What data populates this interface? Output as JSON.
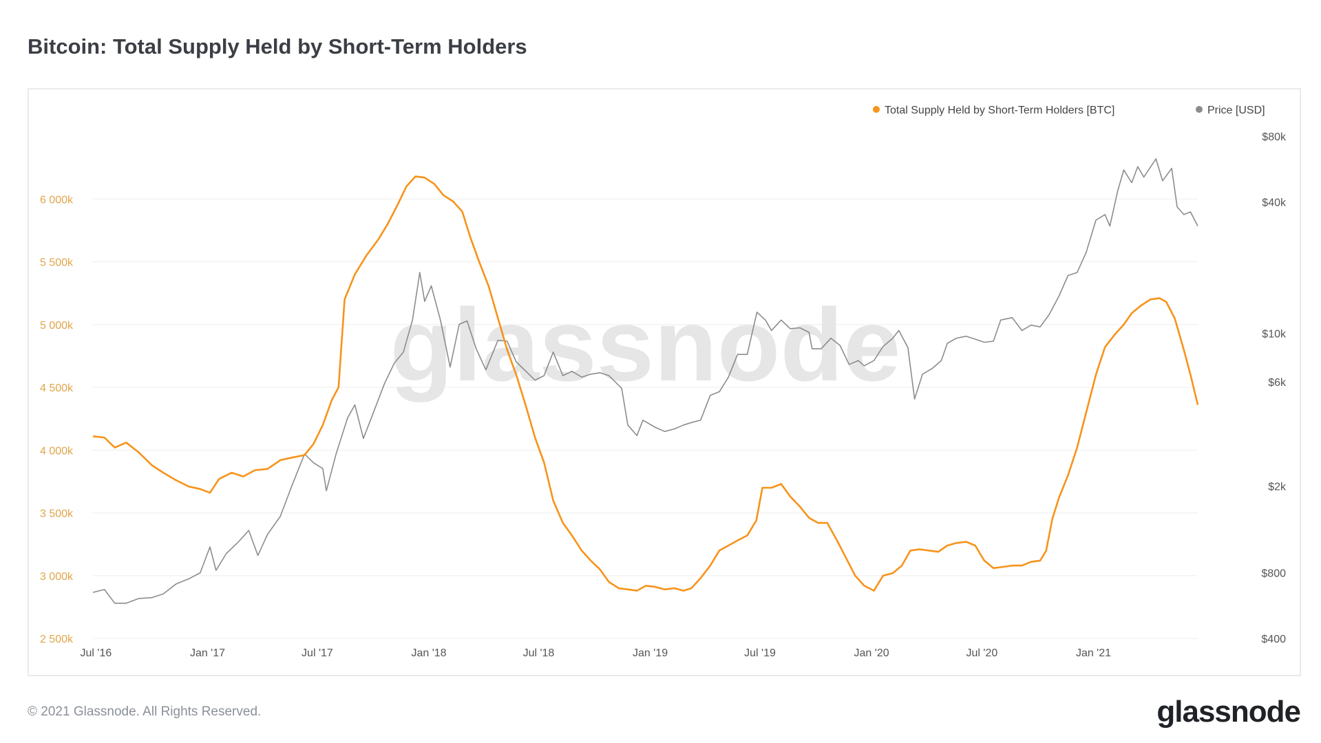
{
  "page": {
    "title": "Bitcoin: Total Supply Held by Short-Term Holders",
    "footer_copyright": "© 2021 Glassnode. All Rights Reserved.",
    "footer_logo": "glassnode",
    "watermark": "glassnode"
  },
  "colors": {
    "supply": "#f7931a",
    "price": "#8c8c8c",
    "left_axis_text": "#e0a54a",
    "right_axis_text": "#555555",
    "grid": "#eeeeee"
  },
  "chart_data": {
    "type": "line",
    "title": "Bitcoin: Total Supply Held by Short-Term Holders",
    "legend_position": "top-right",
    "x_ticks": [
      "Jul '16",
      "Jan '17",
      "Jul '17",
      "Jan '18",
      "Jul '18",
      "Jan '19",
      "Jul '19",
      "Jan '20",
      "Jul '20",
      "Jan '21"
    ],
    "x_range": [
      "2016-06-26",
      "2021-06-22"
    ],
    "y_left": {
      "range": [
        2500,
        6500
      ],
      "ticks": [
        2500,
        3000,
        3500,
        4000,
        4500,
        5000,
        5500,
        6000
      ],
      "tick_labels": [
        "2 500k",
        "3 000k",
        "3 500k",
        "4 000k",
        "4 500k",
        "5 000k",
        "5 500k",
        "6 000k"
      ]
    },
    "y_right": {
      "scale": "log",
      "ticks": [
        400,
        800,
        2000,
        6000,
        10000,
        40000,
        80000
      ],
      "tick_labels": [
        "$400",
        "$800",
        "$2k",
        "$6k",
        "$10k",
        "$40k",
        "$80k"
      ]
    },
    "series": [
      {
        "name": "Total Supply Held by Short-Term Holders [BTC]",
        "axis": "left",
        "points": [
          [
            "2016-06-26",
            4110
          ],
          [
            "2016-07-15",
            4100
          ],
          [
            "2016-08-01",
            4020
          ],
          [
            "2016-08-20",
            4060
          ],
          [
            "2016-09-10",
            3980
          ],
          [
            "2016-10-01",
            3880
          ],
          [
            "2016-10-20",
            3820
          ],
          [
            "2016-11-10",
            3760
          ],
          [
            "2016-12-01",
            3710
          ],
          [
            "2016-12-20",
            3690
          ],
          [
            "2017-01-05",
            3660
          ],
          [
            "2017-01-20",
            3770
          ],
          [
            "2017-02-10",
            3820
          ],
          [
            "2017-03-01",
            3790
          ],
          [
            "2017-03-20",
            3840
          ],
          [
            "2017-04-10",
            3850
          ],
          [
            "2017-05-01",
            3920
          ],
          [
            "2017-05-20",
            3940
          ],
          [
            "2017-06-10",
            3960
          ],
          [
            "2017-06-25",
            4050
          ],
          [
            "2017-07-10",
            4200
          ],
          [
            "2017-07-25",
            4400
          ],
          [
            "2017-08-05",
            4500
          ],
          [
            "2017-08-15",
            5200
          ],
          [
            "2017-09-01",
            5400
          ],
          [
            "2017-09-20",
            5550
          ],
          [
            "2017-10-10",
            5680
          ],
          [
            "2017-10-25",
            5800
          ],
          [
            "2017-11-10",
            5950
          ],
          [
            "2017-11-25",
            6100
          ],
          [
            "2017-12-10",
            6180
          ],
          [
            "2017-12-25",
            6170
          ],
          [
            "2018-01-10",
            6120
          ],
          [
            "2018-01-25",
            6030
          ],
          [
            "2018-02-10",
            5980
          ],
          [
            "2018-02-25",
            5900
          ],
          [
            "2018-03-10",
            5700
          ],
          [
            "2018-03-25",
            5500
          ],
          [
            "2018-04-10",
            5300
          ],
          [
            "2018-04-25",
            5050
          ],
          [
            "2018-05-10",
            4800
          ],
          [
            "2018-05-25",
            4600
          ],
          [
            "2018-06-10",
            4350
          ],
          [
            "2018-06-25",
            4100
          ],
          [
            "2018-07-10",
            3900
          ],
          [
            "2018-07-25",
            3600
          ],
          [
            "2018-08-10",
            3420
          ],
          [
            "2018-08-25",
            3320
          ],
          [
            "2018-09-10",
            3200
          ],
          [
            "2018-09-25",
            3120
          ],
          [
            "2018-10-10",
            3050
          ],
          [
            "2018-10-25",
            2950
          ],
          [
            "2018-11-10",
            2900
          ],
          [
            "2018-11-25",
            2890
          ],
          [
            "2018-12-10",
            2880
          ],
          [
            "2018-12-25",
            2920
          ],
          [
            "2019-01-10",
            2910
          ],
          [
            "2019-01-25",
            2890
          ],
          [
            "2019-02-10",
            2900
          ],
          [
            "2019-02-25",
            2880
          ],
          [
            "2019-03-10",
            2900
          ],
          [
            "2019-03-25",
            2980
          ],
          [
            "2019-04-10",
            3080
          ],
          [
            "2019-04-25",
            3200
          ],
          [
            "2019-05-10",
            3240
          ],
          [
            "2019-05-25",
            3280
          ],
          [
            "2019-06-10",
            3320
          ],
          [
            "2019-06-25",
            3440
          ],
          [
            "2019-07-05",
            3700
          ],
          [
            "2019-07-20",
            3700
          ],
          [
            "2019-08-05",
            3730
          ],
          [
            "2019-08-20",
            3630
          ],
          [
            "2019-09-05",
            3550
          ],
          [
            "2019-09-20",
            3460
          ],
          [
            "2019-10-05",
            3420
          ],
          [
            "2019-10-20",
            3420
          ],
          [
            "2019-11-05",
            3280
          ],
          [
            "2019-11-20",
            3140
          ],
          [
            "2019-12-05",
            3000
          ],
          [
            "2019-12-20",
            2920
          ],
          [
            "2020-01-05",
            2880
          ],
          [
            "2020-01-20",
            3000
          ],
          [
            "2020-02-05",
            3020
          ],
          [
            "2020-02-20",
            3080
          ],
          [
            "2020-03-05",
            3200
          ],
          [
            "2020-03-20",
            3210
          ],
          [
            "2020-04-05",
            3200
          ],
          [
            "2020-04-20",
            3190
          ],
          [
            "2020-05-05",
            3240
          ],
          [
            "2020-05-20",
            3260
          ],
          [
            "2020-06-05",
            3270
          ],
          [
            "2020-06-20",
            3240
          ],
          [
            "2020-07-05",
            3120
          ],
          [
            "2020-07-20",
            3060
          ],
          [
            "2020-08-05",
            3070
          ],
          [
            "2020-08-20",
            3080
          ],
          [
            "2020-09-05",
            3080
          ],
          [
            "2020-09-20",
            3110
          ],
          [
            "2020-10-05",
            3120
          ],
          [
            "2020-10-15",
            3200
          ],
          [
            "2020-10-25",
            3450
          ],
          [
            "2020-11-05",
            3620
          ],
          [
            "2020-11-20",
            3800
          ],
          [
            "2020-12-05",
            4020
          ],
          [
            "2020-12-20",
            4300
          ],
          [
            "2021-01-05",
            4600
          ],
          [
            "2021-01-20",
            4820
          ],
          [
            "2021-02-05",
            4920
          ],
          [
            "2021-02-20",
            5000
          ],
          [
            "2021-03-05",
            5090
          ],
          [
            "2021-03-20",
            5150
          ],
          [
            "2021-04-05",
            5200
          ],
          [
            "2021-04-20",
            5210
          ],
          [
            "2021-05-01",
            5180
          ],
          [
            "2021-05-15",
            5050
          ],
          [
            "2021-05-30",
            4800
          ],
          [
            "2021-06-10",
            4600
          ],
          [
            "2021-06-22",
            4360
          ]
        ]
      },
      {
        "name": "Price [USD]",
        "axis": "right",
        "points": [
          [
            "2016-06-26",
            650
          ],
          [
            "2016-07-15",
            670
          ],
          [
            "2016-08-01",
            580
          ],
          [
            "2016-08-20",
            580
          ],
          [
            "2016-09-10",
            610
          ],
          [
            "2016-10-01",
            615
          ],
          [
            "2016-10-20",
            640
          ],
          [
            "2016-11-10",
            710
          ],
          [
            "2016-12-01",
            750
          ],
          [
            "2016-12-20",
            800
          ],
          [
            "2017-01-05",
            1050
          ],
          [
            "2017-01-15",
            820
          ],
          [
            "2017-02-01",
            980
          ],
          [
            "2017-02-20",
            1100
          ],
          [
            "2017-03-10",
            1250
          ],
          [
            "2017-03-25",
            960
          ],
          [
            "2017-04-10",
            1200
          ],
          [
            "2017-05-01",
            1450
          ],
          [
            "2017-05-20",
            2000
          ],
          [
            "2017-06-10",
            2800
          ],
          [
            "2017-06-25",
            2550
          ],
          [
            "2017-07-10",
            2400
          ],
          [
            "2017-07-16",
            1900
          ],
          [
            "2017-08-01",
            2800
          ],
          [
            "2017-08-20",
            4100
          ],
          [
            "2017-09-01",
            4700
          ],
          [
            "2017-09-15",
            3300
          ],
          [
            "2017-10-01",
            4300
          ],
          [
            "2017-10-20",
            5900
          ],
          [
            "2017-11-05",
            7300
          ],
          [
            "2017-11-20",
            8200
          ],
          [
            "2017-12-05",
            11500
          ],
          [
            "2017-12-17",
            19000
          ],
          [
            "2017-12-25",
            14000
          ],
          [
            "2018-01-05",
            16500
          ],
          [
            "2018-01-20",
            11500
          ],
          [
            "2018-02-05",
            7000
          ],
          [
            "2018-02-20",
            11000
          ],
          [
            "2018-03-05",
            11400
          ],
          [
            "2018-03-20",
            8500
          ],
          [
            "2018-04-05",
            6800
          ],
          [
            "2018-04-25",
            9300
          ],
          [
            "2018-05-10",
            9200
          ],
          [
            "2018-05-25",
            7400
          ],
          [
            "2018-06-10",
            6700
          ],
          [
            "2018-06-25",
            6100
          ],
          [
            "2018-07-10",
            6400
          ],
          [
            "2018-07-25",
            8200
          ],
          [
            "2018-08-10",
            6400
          ],
          [
            "2018-08-25",
            6700
          ],
          [
            "2018-09-10",
            6300
          ],
          [
            "2018-09-25",
            6500
          ],
          [
            "2018-10-10",
            6600
          ],
          [
            "2018-10-25",
            6400
          ],
          [
            "2018-11-15",
            5600
          ],
          [
            "2018-11-25",
            3800
          ],
          [
            "2018-12-10",
            3400
          ],
          [
            "2018-12-20",
            4000
          ],
          [
            "2019-01-10",
            3700
          ],
          [
            "2019-01-25",
            3550
          ],
          [
            "2019-02-10",
            3650
          ],
          [
            "2019-02-25",
            3800
          ],
          [
            "2019-03-10",
            3900
          ],
          [
            "2019-03-25",
            4000
          ],
          [
            "2019-04-10",
            5200
          ],
          [
            "2019-04-25",
            5400
          ],
          [
            "2019-05-10",
            6300
          ],
          [
            "2019-05-25",
            8000
          ],
          [
            "2019-06-10",
            8000
          ],
          [
            "2019-06-26",
            12500
          ],
          [
            "2019-07-10",
            11500
          ],
          [
            "2019-07-20",
            10300
          ],
          [
            "2019-08-05",
            11500
          ],
          [
            "2019-08-20",
            10500
          ],
          [
            "2019-09-05",
            10600
          ],
          [
            "2019-09-20",
            10100
          ],
          [
            "2019-09-25",
            8500
          ],
          [
            "2019-10-10",
            8500
          ],
          [
            "2019-10-26",
            9500
          ],
          [
            "2019-11-10",
            8800
          ],
          [
            "2019-11-25",
            7200
          ],
          [
            "2019-12-10",
            7500
          ],
          [
            "2019-12-20",
            7100
          ],
          [
            "2020-01-05",
            7500
          ],
          [
            "2020-01-20",
            8700
          ],
          [
            "2020-02-05",
            9500
          ],
          [
            "2020-02-15",
            10300
          ],
          [
            "2020-03-01",
            8600
          ],
          [
            "2020-03-12",
            5000
          ],
          [
            "2020-03-25",
            6500
          ],
          [
            "2020-04-10",
            6900
          ],
          [
            "2020-04-25",
            7500
          ],
          [
            "2020-05-05",
            9000
          ],
          [
            "2020-05-20",
            9500
          ],
          [
            "2020-06-05",
            9700
          ],
          [
            "2020-06-20",
            9400
          ],
          [
            "2020-07-05",
            9100
          ],
          [
            "2020-07-20",
            9200
          ],
          [
            "2020-08-01",
            11500
          ],
          [
            "2020-08-20",
            11800
          ],
          [
            "2020-09-05",
            10300
          ],
          [
            "2020-09-20",
            10900
          ],
          [
            "2020-10-05",
            10700
          ],
          [
            "2020-10-20",
            12200
          ],
          [
            "2020-11-05",
            14800
          ],
          [
            "2020-11-20",
            18400
          ],
          [
            "2020-12-05",
            19000
          ],
          [
            "2020-12-20",
            23500
          ],
          [
            "2021-01-05",
            33000
          ],
          [
            "2021-01-20",
            35000
          ],
          [
            "2021-01-28",
            31000
          ],
          [
            "2021-02-10",
            45000
          ],
          [
            "2021-02-20",
            56000
          ],
          [
            "2021-03-05",
            49000
          ],
          [
            "2021-03-15",
            58000
          ],
          [
            "2021-03-25",
            52000
          ],
          [
            "2021-04-14",
            63000
          ],
          [
            "2021-04-25",
            50000
          ],
          [
            "2021-05-10",
            57000
          ],
          [
            "2021-05-19",
            38000
          ],
          [
            "2021-05-30",
            35000
          ],
          [
            "2021-06-10",
            36000
          ],
          [
            "2021-06-22",
            31000
          ]
        ]
      }
    ],
    "watermark": "glassnode"
  }
}
